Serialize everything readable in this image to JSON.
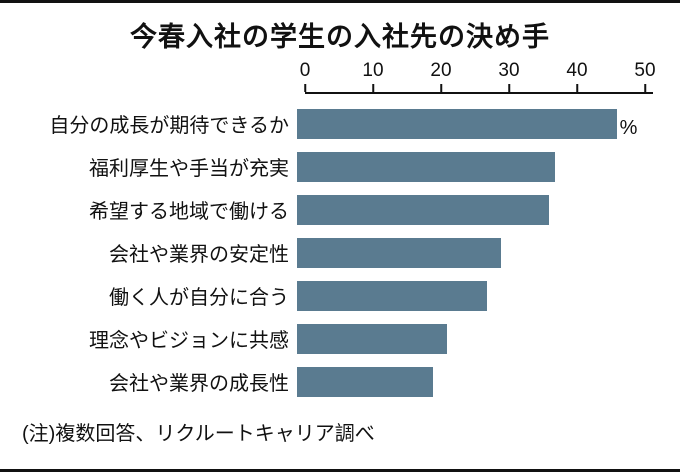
{
  "title": "今春入社の学生の入社先の決め手",
  "note": "(注)複数回答、リクルートキャリア調べ",
  "chart_data": {
    "type": "bar",
    "orientation": "horizontal",
    "title": "今春入社の学生の入社先の決め手",
    "categories": [
      "自分の成長が期待できるか",
      "福利厚生や手当が充実",
      "希望する地域で働ける",
      "会社や業界の安定性",
      "働く人が自分に合う",
      "理念やビジョンに共感",
      "会社や業界の成長性"
    ],
    "values": [
      47,
      38,
      37,
      30,
      28,
      22,
      20
    ],
    "unit_label": "%",
    "xlim": [
      0,
      50
    ],
    "x_ticks": [
      0,
      10,
      20,
      30,
      40,
      50
    ],
    "bar_color": "#5a7b90",
    "grid": false,
    "legend": false,
    "source_note": "(注)複数回答、リクルートキャリア調べ"
  }
}
